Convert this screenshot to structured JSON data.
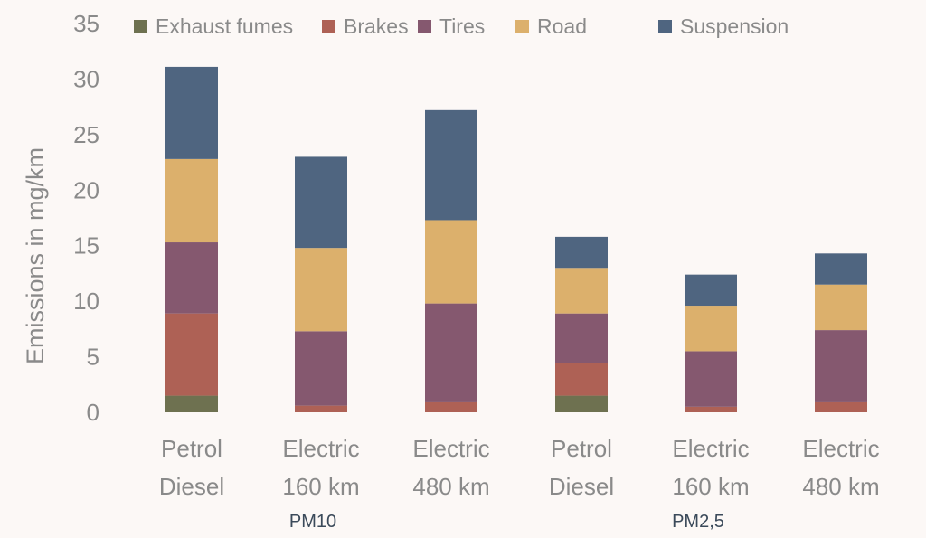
{
  "chart_data": {
    "type": "bar",
    "stacked": true,
    "ylabel": "Emissions in mg/km",
    "ylim": [
      0,
      35
    ],
    "yticks": [
      "0",
      "5",
      "10",
      "15",
      "20",
      "25",
      "30",
      "35"
    ],
    "categories": [
      [
        "Petrol",
        "Diesel"
      ],
      [
        "Electric",
        "160 km"
      ],
      [
        "Electric",
        "480 km"
      ],
      [
        "Petrol",
        "Diesel"
      ],
      [
        "Electric",
        "160 km"
      ],
      [
        "Electric",
        "480 km"
      ]
    ],
    "groups": [
      {
        "label": "PM10",
        "categories": [
          0,
          1,
          2
        ]
      },
      {
        "label": "PM2,5",
        "categories": [
          3,
          4,
          5
        ]
      }
    ],
    "series": [
      {
        "name": "Exhaust fumes",
        "color": "#6e7150",
        "values": [
          1.5,
          0,
          0,
          1.5,
          0,
          0
        ]
      },
      {
        "name": "Brakes",
        "color": "#ae6155",
        "values": [
          7.4,
          0.6,
          0.9,
          2.9,
          0.5,
          0.9
        ]
      },
      {
        "name": "Tires",
        "color": "#85586f",
        "values": [
          6.4,
          6.7,
          8.9,
          4.5,
          5.0,
          6.5
        ]
      },
      {
        "name": "Road",
        "color": "#dcb06c",
        "values": [
          7.5,
          7.5,
          7.5,
          4.1,
          4.1,
          4.1
        ]
      },
      {
        "name": "Suspension",
        "color": "#4f6580",
        "values": [
          8.3,
          8.2,
          9.9,
          2.8,
          2.8,
          2.8
        ]
      }
    ],
    "legend_position": "top"
  }
}
